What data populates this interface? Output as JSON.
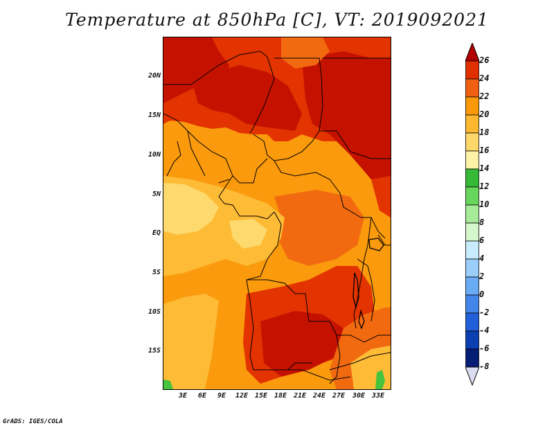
{
  "title": "Temperature at 850hPa [C], VT: 2019092021",
  "credit": "GrADS: IGES/COLA",
  "lat_labels": [
    "20N",
    "15N",
    "10N",
    "5N",
    "EQ",
    "5S",
    "10S",
    "15S"
  ],
  "lon_labels": [
    "3E",
    "6E",
    "9E",
    "12E",
    "15E",
    "18E",
    "21E",
    "24E",
    "27E",
    "30E",
    "33E"
  ],
  "colorbar": {
    "labels": [
      "26",
      "24",
      "22",
      "20",
      "18",
      "16",
      "14",
      "12",
      "10",
      "8",
      "6",
      "4",
      "2",
      "0",
      "-2",
      "-4",
      "-6",
      "-8"
    ],
    "colors": [
      "#b30000",
      "#e03000",
      "#f06010",
      "#fa9a0a",
      "#fdb830",
      "#fdd769",
      "#fef2a8",
      "#35b936",
      "#67d65d",
      "#a6ec98",
      "#d4f7cc",
      "#c8ebfd",
      "#9bcefb",
      "#6aacf4",
      "#4386ea",
      "#2160d8",
      "#0c3fb2",
      "#061d75",
      "#dcdcf0"
    ]
  },
  "colors": {
    "t26": "#c51200",
    "t24": "#e23300",
    "t22": "#f26a10",
    "t20": "#fa9a0c",
    "t18": "#fdbb36",
    "t16": "#fdd96e",
    "t14": "#fef2a8",
    "t12": "#46c43e",
    "t10": "#7ad96e",
    "border": "#000000"
  }
}
